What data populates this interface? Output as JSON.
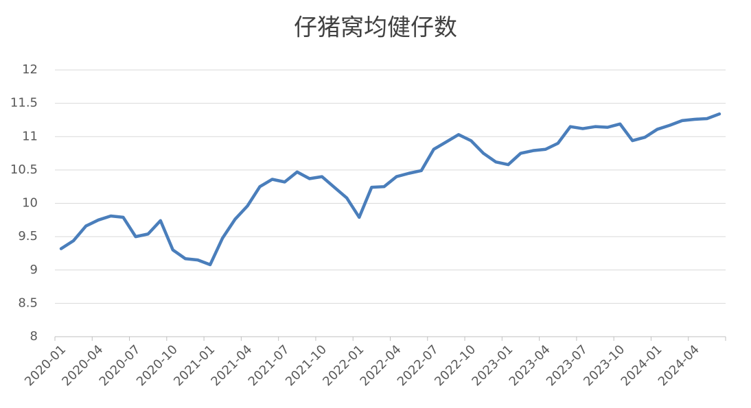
{
  "chart_data": {
    "type": "line",
    "title": "仔猪窝均健仔数",
    "categories": [
      "2020-01",
      null,
      null,
      "2020-04",
      null,
      null,
      "2020-07",
      null,
      null,
      "2020-10",
      null,
      null,
      "2021-01",
      null,
      null,
      "2021-04",
      null,
      null,
      "2021-07",
      null,
      null,
      "2021-10",
      null,
      null,
      "2022-01",
      null,
      null,
      "2022-04",
      null,
      null,
      "2022-07",
      null,
      null,
      "2022-10",
      null,
      null,
      "2023-01",
      null,
      null,
      "2023-04",
      null,
      null,
      "2023-07",
      null,
      null,
      "2023-10",
      null,
      null,
      "2024-01",
      null,
      null,
      "2024-04",
      null,
      null
    ],
    "values": [
      9.32,
      9.44,
      9.66,
      9.75,
      9.81,
      9.79,
      9.5,
      9.54,
      9.74,
      9.3,
      9.17,
      9.15,
      9.08,
      9.48,
      9.76,
      9.96,
      10.25,
      10.36,
      10.32,
      10.47,
      10.37,
      10.4,
      10.24,
      10.08,
      9.79,
      10.24,
      10.25,
      10.4,
      10.45,
      10.49,
      10.81,
      10.92,
      11.03,
      10.94,
      10.75,
      10.62,
      10.58,
      10.75,
      10.79,
      10.81,
      10.9,
      11.15,
      11.12,
      11.15,
      11.14,
      11.19,
      10.94,
      10.99,
      11.11,
      11.17,
      11.24,
      11.26,
      11.27,
      11.34
    ],
    "color": "#4a7ebb",
    "ylim": [
      8,
      12
    ],
    "yticks": [
      8,
      8.5,
      9,
      9.5,
      10,
      10.5,
      11,
      11.5,
      12
    ],
    "grid": true
  }
}
